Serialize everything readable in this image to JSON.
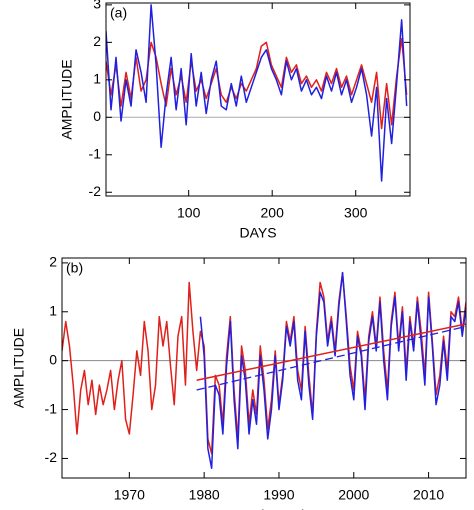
{
  "chart_data": [
    {
      "type": "line",
      "label": "(a)",
      "xlabel": "DAYS",
      "ylabel": "AMPLITUDE",
      "xlim": [
        1,
        365
      ],
      "ylim": [
        -2.1,
        3.05
      ],
      "xticks": [
        100,
        200,
        300
      ],
      "yticks": [
        -2,
        -1,
        0,
        1,
        2,
        3
      ],
      "hline": 0,
      "hline_color": "#aaaaaa",
      "series": [
        {
          "color": "#e0201a",
          "x": [
            1,
            7,
            13,
            19,
            25,
            31,
            37,
            43,
            49,
            55,
            61,
            67,
            73,
            79,
            85,
            91,
            97,
            103,
            109,
            115,
            121,
            127,
            133,
            139,
            145,
            151,
            157,
            163,
            169,
            175,
            181,
            187,
            193,
            199,
            205,
            211,
            217,
            223,
            229,
            235,
            241,
            247,
            253,
            259,
            265,
            271,
            277,
            283,
            289,
            295,
            301,
            307,
            313,
            319,
            325,
            331,
            337,
            343,
            349,
            355,
            361
          ],
          "values": [
            1.5,
            0.6,
            1.4,
            0.3,
            1.2,
            0.5,
            1.6,
            0.7,
            1.0,
            2.0,
            1.6,
            0.9,
            0.3,
            1.3,
            0.6,
            1.1,
            0.4,
            1.5,
            0.7,
            1.0,
            0.5,
            0.9,
            1.3,
            0.6,
            0.4,
            0.8,
            0.5,
            0.9,
            0.7,
            1.0,
            1.3,
            1.9,
            2.0,
            1.4,
            1.1,
            0.8,
            1.6,
            1.2,
            1.4,
            0.9,
            1.1,
            0.8,
            1.0,
            0.7,
            1.2,
            0.9,
            1.3,
            0.8,
            1.1,
            0.6,
            1.0,
            1.4,
            0.9,
            0.4,
            1.2,
            -0.3,
            0.9,
            -0.2,
            1.1,
            2.1,
            0.6
          ]
        },
        {
          "color": "#2020e0",
          "x": [
            1,
            7,
            13,
            19,
            25,
            31,
            37,
            43,
            49,
            55,
            61,
            67,
            73,
            79,
            85,
            91,
            97,
            103,
            109,
            115,
            121,
            127,
            133,
            139,
            145,
            151,
            157,
            163,
            169,
            175,
            181,
            187,
            193,
            199,
            205,
            211,
            217,
            223,
            229,
            235,
            241,
            247,
            253,
            259,
            265,
            271,
            277,
            283,
            289,
            295,
            301,
            307,
            313,
            319,
            325,
            331,
            337,
            343,
            349,
            355,
            361
          ],
          "values": [
            2.3,
            0.2,
            1.6,
            -0.1,
            1.0,
            0.3,
            1.8,
            1.2,
            0.4,
            3.0,
            1.4,
            -0.8,
            0.6,
            1.6,
            0.2,
            1.3,
            -0.2,
            1.7,
            0.3,
            1.2,
            0.1,
            1.0,
            1.5,
            0.3,
            0.2,
            0.9,
            0.3,
            1.1,
            0.4,
            0.8,
            1.2,
            1.6,
            1.8,
            1.3,
            1.0,
            0.6,
            1.5,
            1.0,
            1.3,
            0.7,
            1.0,
            0.6,
            0.8,
            0.5,
            1.1,
            0.7,
            1.2,
            0.6,
            1.0,
            0.4,
            0.8,
            1.3,
            0.6,
            -0.5,
            0.8,
            -1.7,
            0.5,
            -0.7,
            0.9,
            2.6,
            0.3
          ]
        }
      ]
    },
    {
      "type": "line",
      "label": "(b)",
      "xlabel": "TIME (YEAR)",
      "ylabel": "AMPLITUDE",
      "xlim": [
        1961,
        2015
      ],
      "ylim": [
        -2.4,
        2.1
      ],
      "xticks": [
        1970,
        1980,
        1990,
        2000,
        2010
      ],
      "yticks": [
        -2,
        -1,
        0,
        1,
        2
      ],
      "hline": 0,
      "hline_color": "#888888",
      "series": [
        {
          "color": "#e0201a",
          "x": [
            1961,
            1961.5,
            1962,
            1962.5,
            1963,
            1963.5,
            1964,
            1964.5,
            1965,
            1965.5,
            1966,
            1966.5,
            1967,
            1967.5,
            1968,
            1968.5,
            1969,
            1969.5,
            1970,
            1970.5,
            1971,
            1971.5,
            1972,
            1972.5,
            1973,
            1973.5,
            1974,
            1974.5,
            1975,
            1975.5,
            1976,
            1976.5,
            1977,
            1977.5,
            1978,
            1978.5,
            1979,
            1979.5,
            1980,
            1980.5,
            1981,
            1981.5,
            1982,
            1982.5,
            1983,
            1983.5,
            1984,
            1984.5,
            1985,
            1985.5,
            1986,
            1986.5,
            1987,
            1987.5,
            1988,
            1988.5,
            1989,
            1989.5,
            1990,
            1990.5,
            1991,
            1991.5,
            1992,
            1992.5,
            1993,
            1993.5,
            1994,
            1994.5,
            1995,
            1995.5,
            1996,
            1996.5,
            1997,
            1997.5,
            1998,
            1998.5,
            1999,
            1999.5,
            2000,
            2000.5,
            2001,
            2001.5,
            2002,
            2002.5,
            2003,
            2003.5,
            2004,
            2004.5,
            2005,
            2005.5,
            2006,
            2006.5,
            2007,
            2007.5,
            2008,
            2008.5,
            2009,
            2009.5,
            2010,
            2010.5,
            2011,
            2011.5,
            2012,
            2012.5,
            2013,
            2013.5,
            2014,
            2014.5,
            2015
          ],
          "values": [
            0.2,
            0.8,
            0.3,
            -0.5,
            -1.5,
            -0.6,
            -0.2,
            -0.9,
            -0.4,
            -1.1,
            -0.5,
            -0.9,
            -0.6,
            -0.2,
            -1.0,
            -0.4,
            0.0,
            -1.2,
            -1.5,
            -0.7,
            0.2,
            -0.3,
            0.8,
            0.2,
            -1.0,
            -0.5,
            0.9,
            0.3,
            0.8,
            -0.1,
            -0.9,
            0.5,
            0.9,
            -0.5,
            1.6,
            0.6,
            -0.2,
            0.6,
            0.3,
            -1.6,
            -1.9,
            -0.3,
            -0.5,
            -1.3,
            0.1,
            0.9,
            -0.6,
            -1.6,
            0.3,
            -0.2,
            -1.3,
            -0.6,
            -1.1,
            0.3,
            -0.4,
            -1.4,
            -0.8,
            0.2,
            -0.9,
            -0.3,
            0.8,
            0.4,
            0.9,
            -0.2,
            -0.6,
            0.7,
            -0.3,
            -1.1,
            0.6,
            1.6,
            1.3,
            0.4,
            0.9,
            0.2,
            1.2,
            1.8,
            0.9,
            -0.1,
            -0.6,
            0.6,
            0.2,
            -0.8,
            0.5,
            1.0,
            0.3,
            1.3,
            0.2,
            -0.6,
            0.8,
            1.4,
            0.3,
            1.1,
            -0.2,
            0.9,
            0.3,
            1.3,
            0.6,
            -0.3,
            1.4,
            0.4,
            -0.7,
            -0.3,
            0.5,
            -0.2,
            1.0,
            0.9,
            1.3,
            0.6,
            1.2
          ]
        },
        {
          "color": "#2020e0",
          "x": [
            1979.5,
            1980,
            1980.5,
            1981,
            1981.5,
            1982,
            1982.5,
            1983,
            1983.5,
            1984,
            1984.5,
            1985,
            1985.5,
            1986,
            1986.5,
            1987,
            1987.5,
            1988,
            1988.5,
            1989,
            1989.5,
            1990,
            1990.5,
            1991,
            1991.5,
            1992,
            1992.5,
            1993,
            1993.5,
            1994,
            1994.5,
            1995,
            1995.5,
            1996,
            1996.5,
            1997,
            1997.5,
            1998,
            1998.5,
            1999,
            1999.5,
            2000,
            2000.5,
            2001,
            2001.5,
            2002,
            2002.5,
            2003,
            2003.5,
            2004,
            2004.5,
            2005,
            2005.5,
            2006,
            2006.5,
            2007,
            2007.5,
            2008,
            2008.5,
            2009,
            2009.5,
            2010,
            2010.5,
            2011,
            2011.5,
            2012,
            2012.5,
            2013,
            2013.5,
            2014,
            2014.5,
            2015
          ],
          "values": [
            0.9,
            0.1,
            -1.8,
            -2.2,
            -0.5,
            -0.7,
            -1.5,
            -0.1,
            0.8,
            -0.8,
            -1.8,
            0.1,
            -0.4,
            -1.5,
            -0.8,
            -1.3,
            0.1,
            -0.6,
            -1.6,
            -1.0,
            0.1,
            -1.0,
            -0.4,
            0.7,
            0.3,
            0.8,
            -0.4,
            -0.8,
            0.6,
            -0.5,
            -1.2,
            0.5,
            1.4,
            1.2,
            0.3,
            0.8,
            0.1,
            1.1,
            1.8,
            0.8,
            -0.3,
            -0.8,
            0.5,
            0.1,
            -1.0,
            0.4,
            0.9,
            0.2,
            1.2,
            0.0,
            -0.8,
            0.7,
            1.3,
            0.2,
            1.0,
            -0.4,
            0.8,
            0.2,
            1.2,
            0.4,
            -0.5,
            1.3,
            0.3,
            -0.9,
            -0.5,
            0.4,
            -0.4,
            0.9,
            0.8,
            1.2,
            0.5,
            1.1
          ]
        },
        {
          "color": "#e0201a",
          "x": [
            1979,
            2015
          ],
          "values": [
            -0.4,
            0.75
          ]
        },
        {
          "color": "#2020e0",
          "dash": true,
          "x": [
            1979,
            2015
          ],
          "values": [
            -0.6,
            0.7
          ]
        }
      ]
    }
  ]
}
